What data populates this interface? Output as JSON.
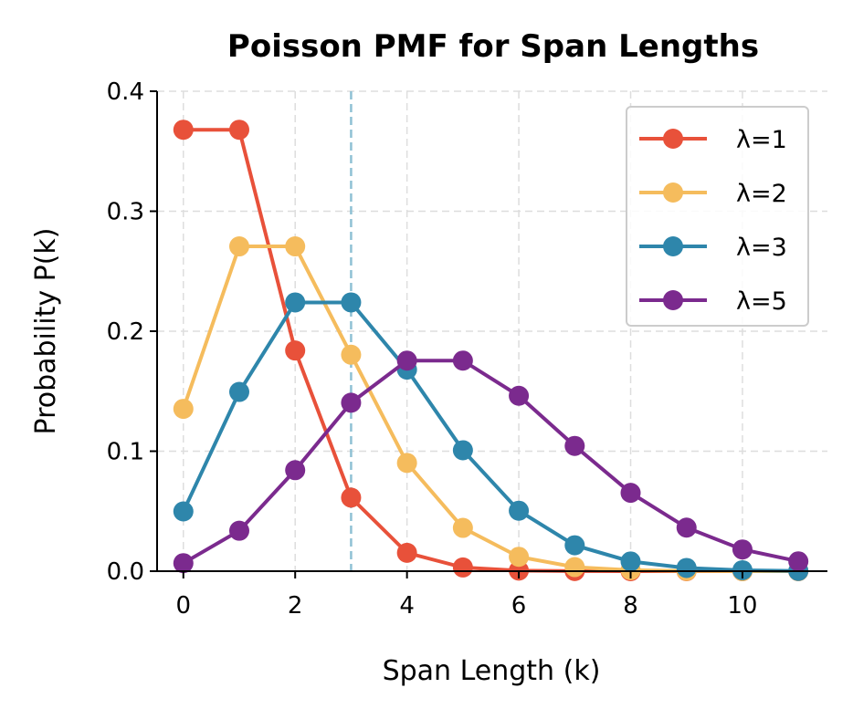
{
  "chart_data": {
    "type": "line",
    "title": "Poisson PMF for Span Lengths",
    "xlabel": "Span Length (k)",
    "ylabel": "Probability P(k)",
    "xlim": [
      -0.47,
      11.52
    ],
    "ylim": [
      0,
      0.4
    ],
    "xticks": [
      "0",
      "2",
      "4",
      "6",
      "8",
      "10"
    ],
    "yticks": [
      "0.0",
      "0.1",
      "0.2",
      "0.3",
      "0.4"
    ],
    "grid": true,
    "legend_position": "top-right",
    "reference_line": {
      "x": 3,
      "color": "#8fc1d4"
    },
    "x": [
      0,
      1,
      2,
      3,
      4,
      5,
      6,
      7,
      8,
      9,
      10,
      11
    ],
    "series": [
      {
        "name": "λ=1",
        "color": "#e8513a",
        "values": [
          0.3679,
          0.3679,
          0.1839,
          0.0613,
          0.0153,
          0.0031,
          0.0005,
          0.0001,
          0.0,
          0.0,
          0.0,
          0.0
        ]
      },
      {
        "name": "λ=2",
        "color": "#f5bc5d",
        "values": [
          0.1353,
          0.2707,
          0.2707,
          0.1804,
          0.0902,
          0.0361,
          0.012,
          0.0034,
          0.0009,
          0.0002,
          0.0,
          0.0
        ]
      },
      {
        "name": "λ=3",
        "color": "#2e86ab",
        "values": [
          0.0498,
          0.1494,
          0.224,
          0.224,
          0.168,
          0.1008,
          0.0504,
          0.0216,
          0.0081,
          0.0027,
          0.0008,
          0.0002
        ]
      },
      {
        "name": "λ=5",
        "color": "#7b2a8e",
        "values": [
          0.0067,
          0.0337,
          0.0842,
          0.1404,
          0.1755,
          0.1755,
          0.1462,
          0.1044,
          0.0653,
          0.0363,
          0.0181,
          0.0082
        ]
      }
    ]
  }
}
